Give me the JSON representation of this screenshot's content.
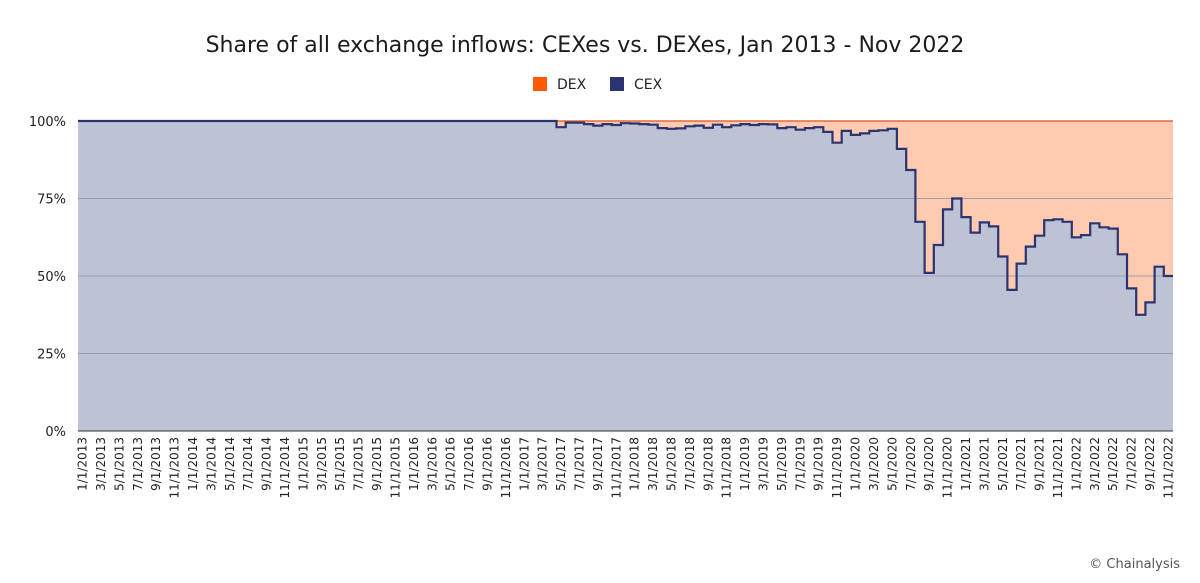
{
  "chart_data": {
    "type": "area",
    "title": "Share of all exchange inflows: CEXes vs. DEXes, Jan 2013 - Nov 2022",
    "credit": "© Chainalysis",
    "stacked": true,
    "ylim": [
      0,
      100
    ],
    "yticks": [
      0,
      25,
      50,
      75,
      100
    ],
    "ytick_labels": [
      "0%",
      "25%",
      "50%",
      "75%",
      "100%"
    ],
    "grid": true,
    "legend_position": "top-center",
    "colors": {
      "dex": "#ffcab0",
      "dex_legend": "#ff5a00",
      "cex_fill": "#bdc3d4",
      "cex_line": "#2a3470",
      "grid": "#9a9fb0"
    },
    "series": [
      {
        "name": "DEX",
        "role": "remainder-to-100"
      },
      {
        "name": "CEX"
      }
    ],
    "x_labels": [
      "1/1/2013",
      "3/1/2013",
      "5/1/2013",
      "7/1/2013",
      "9/1/2013",
      "11/1/2013",
      "1/1/2014",
      "3/1/2014",
      "5/1/2014",
      "7/1/2014",
      "9/1/2014",
      "11/1/2014",
      "1/1/2015",
      "3/1/2015",
      "5/1/2015",
      "7/1/2015",
      "9/1/2015",
      "11/1/2015",
      "1/1/2016",
      "3/1/2016",
      "5/1/2016",
      "7/1/2016",
      "9/1/2016",
      "11/1/2016",
      "1/1/2017",
      "3/1/2017",
      "5/1/2017",
      "7/1/2017",
      "9/1/2017",
      "11/1/2017",
      "1/1/2018",
      "3/1/2018",
      "5/1/2018",
      "7/1/2018",
      "9/1/2018",
      "11/1/2018",
      "1/1/2019",
      "3/1/2019",
      "5/1/2019",
      "7/1/2019",
      "9/1/2019",
      "11/1/2019",
      "1/1/2020",
      "3/1/2020",
      "5/1/2020",
      "7/1/2020",
      "9/1/2020",
      "11/1/2020",
      "1/1/2021",
      "3/1/2021",
      "5/1/2021",
      "7/1/2021",
      "9/1/2021",
      "11/1/2021",
      "1/1/2022",
      "3/1/2022",
      "5/1/2022",
      "7/1/2022",
      "9/1/2022",
      "11/1/2022"
    ],
    "cex_values": [
      [
        "2013-01",
        100
      ],
      [
        "2017-05",
        98
      ],
      [
        "2017-06",
        99.5
      ],
      [
        "2017-08",
        99
      ],
      [
        "2017-09",
        98.5
      ],
      [
        "2017-10",
        99
      ],
      [
        "2017-11",
        98.7
      ],
      [
        "2017-12",
        99.3
      ],
      [
        "2018-01",
        99.2
      ],
      [
        "2018-02",
        99
      ],
      [
        "2018-03",
        98.8
      ],
      [
        "2018-04",
        97.7
      ],
      [
        "2018-05",
        97.5
      ],
      [
        "2018-06",
        97.6
      ],
      [
        "2018-07",
        98.3
      ],
      [
        "2018-08",
        98.5
      ],
      [
        "2018-09",
        97.8
      ],
      [
        "2018-10",
        98.8
      ],
      [
        "2018-11",
        98
      ],
      [
        "2018-12",
        98.6
      ],
      [
        "2019-01",
        99
      ],
      [
        "2019-02",
        98.7
      ],
      [
        "2019-03",
        99
      ],
      [
        "2019-04",
        98.9
      ],
      [
        "2019-05",
        97.7
      ],
      [
        "2019-06",
        98
      ],
      [
        "2019-07",
        97.2
      ],
      [
        "2019-08",
        97.7
      ],
      [
        "2019-09",
        98
      ],
      [
        "2019-10",
        96.5
      ],
      [
        "2019-11",
        93
      ],
      [
        "2019-12",
        96.8
      ],
      [
        "2020-01",
        95.5
      ],
      [
        "2020-02",
        96
      ],
      [
        "2020-03",
        96.8
      ],
      [
        "2020-04",
        97
      ],
      [
        "2020-05",
        97.5
      ],
      [
        "2020-06",
        91
      ],
      [
        "2020-07",
        84.2
      ],
      [
        "2020-08",
        67.5
      ],
      [
        "2020-09",
        51
      ],
      [
        "2020-10",
        60
      ],
      [
        "2020-11",
        71.5
      ],
      [
        "2020-12",
        75
      ],
      [
        "2021-01",
        69
      ],
      [
        "2021-02",
        64
      ],
      [
        "2021-03",
        67.3
      ],
      [
        "2021-04",
        66
      ],
      [
        "2021-05",
        56.3
      ],
      [
        "2021-06",
        45.5
      ],
      [
        "2021-07",
        54
      ],
      [
        "2021-08",
        59.5
      ],
      [
        "2021-09",
        63
      ],
      [
        "2021-10",
        68
      ],
      [
        "2021-11",
        68.3
      ],
      [
        "2021-12",
        67.5
      ],
      [
        "2022-01",
        62.5
      ],
      [
        "2022-02",
        63.2
      ],
      [
        "2022-03",
        67
      ],
      [
        "2022-04",
        65.7
      ],
      [
        "2022-05",
        65.3
      ],
      [
        "2022-06",
        57
      ],
      [
        "2022-07",
        46
      ],
      [
        "2022-08",
        37.5
      ],
      [
        "2022-09",
        41.5
      ],
      [
        "2022-10",
        53
      ],
      [
        "2022-11",
        50
      ]
    ]
  }
}
